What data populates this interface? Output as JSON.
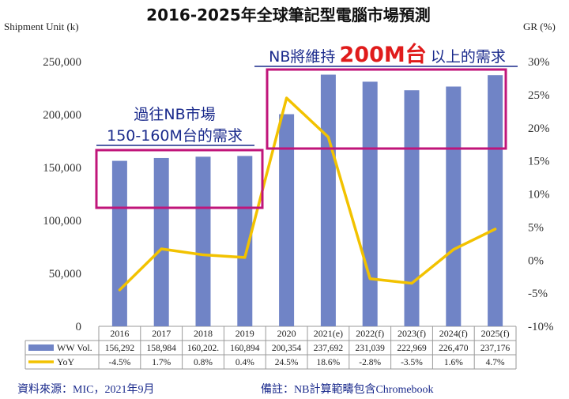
{
  "chart_data": {
    "type": "bar",
    "title": "2016-2025年全球筆記型電腦市場預測",
    "ylabel_left": "Shipment Unit (k)",
    "ylabel_right": "GR (%)",
    "categories": [
      "2016",
      "2017",
      "2018",
      "2019",
      "2020",
      "2021(e)",
      "2022(f)",
      "2023(f)",
      "2024(f)",
      "2025(f)"
    ],
    "y_left_ticks": [
      "0",
      "50,000",
      "100,000",
      "150,000",
      "200,000",
      "250,000"
    ],
    "y_left_range": [
      0,
      250000
    ],
    "y_right_ticks": [
      "-10%",
      "-5%",
      "0%",
      "5%",
      "10%",
      "15%",
      "20%",
      "25%",
      "30%"
    ],
    "y_right_range": [
      -10,
      30
    ],
    "series": [
      {
        "name": "WW Vol.",
        "kind": "bar",
        "color": "#7084c6",
        "values": [
          156292,
          158984,
          160202,
          160894,
          200354,
          237692,
          231039,
          222969,
          226470,
          237176
        ],
        "labels": [
          "156,292",
          "158,984",
          "160,202.",
          "160,894",
          "200,354",
          "237,692",
          "231,039",
          "222,969",
          "226,470",
          "237,176"
        ]
      },
      {
        "name": "YoY",
        "kind": "line",
        "color": "#f2c200",
        "values": [
          -4.5,
          1.7,
          0.8,
          0.4,
          24.5,
          18.6,
          -2.8,
          -3.5,
          1.6,
          4.7
        ],
        "labels": [
          "-4.5%",
          "1.7%",
          "0.8%",
          "0.4%",
          "24.5%",
          "18.6%",
          "-2.8%",
          "-3.5%",
          "1.6%",
          "4.7%"
        ]
      }
    ],
    "annotations": [
      {
        "line1": "過往NB市場",
        "line2": "150-160M台的需求",
        "color": "#1a2a8c",
        "box_color": "#c0157a"
      },
      {
        "prefix": "NB將維持",
        "highlight": "200M台",
        "suffix": "以上的需求",
        "color": "#1a2a8c",
        "highlight_color": "#e01b1b",
        "box_color": "#c0157a"
      }
    ],
    "grid": false,
    "legend": "table-bottom"
  },
  "footer": {
    "source": "資料來源：MIC，2021年9月",
    "note": "備註：NB計算範疇包含Chromebook"
  }
}
